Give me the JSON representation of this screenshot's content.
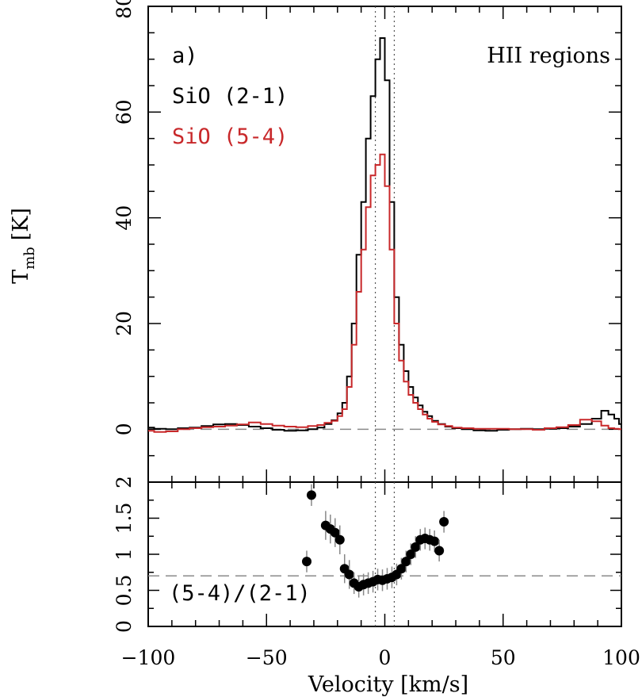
{
  "chart_data": [
    {
      "type": "line",
      "panel": "upper",
      "title": "HII regions",
      "panel_label": "a)",
      "xlabel": "",
      "ylabel_main": "T",
      "ylabel_sub": "mb",
      "ylabel_unit": "[K]",
      "xlim": [
        -100,
        100
      ],
      "ylim": [
        -10,
        80
      ],
      "yticks": [
        "0",
        "20",
        "40",
        "60",
        "80"
      ],
      "baseline": 0,
      "markers_x": [
        -4,
        4
      ],
      "colors": {
        "series1": "#000000",
        "series2": "#c8282a",
        "guide": "#8a8a8a"
      },
      "series": [
        {
          "name": "SiO (2-1)",
          "x": [
            -100,
            -95,
            -90,
            -85,
            -80,
            -75,
            -70,
            -65,
            -60,
            -55,
            -50,
            -45,
            -40,
            -35,
            -30,
            -27,
            -24,
            -21,
            -19,
            -17,
            -15,
            -13,
            -11,
            -9,
            -7,
            -5,
            -3,
            -1,
            1,
            3,
            5,
            7,
            9,
            11,
            13,
            15,
            17,
            19,
            21,
            24,
            27,
            30,
            35,
            40,
            45,
            50,
            55,
            60,
            65,
            70,
            75,
            80,
            85,
            90,
            93,
            96,
            98,
            100
          ],
          "y": [
            0.3,
            0.1,
            0,
            0.2,
            0.3,
            0.6,
            0.9,
            1,
            0.8,
            0.5,
            0.2,
            -0.1,
            -0.3,
            -0.2,
            0,
            0.3,
            1,
            1.7,
            3,
            5,
            10,
            20,
            33,
            43,
            55,
            63,
            70,
            74,
            66,
            43,
            25,
            16,
            11,
            8,
            6,
            4.5,
            3.3,
            2.5,
            1.6,
            1,
            0.5,
            0.2,
            0,
            -0.2,
            -0.3,
            -0.1,
            0,
            0.1,
            0,
            0.1,
            0.2,
            0.5,
            1,
            2,
            3.5,
            2.8,
            2,
            1
          ]
        },
        {
          "name": "SiO (5-4)",
          "x": [
            -100,
            -95,
            -90,
            -85,
            -80,
            -75,
            -70,
            -65,
            -60,
            -55,
            -50,
            -45,
            -40,
            -35,
            -30,
            -27,
            -24,
            -21,
            -19,
            -17,
            -15,
            -13,
            -11,
            -9,
            -7,
            -5,
            -3,
            -1,
            1,
            3,
            5,
            7,
            9,
            11,
            13,
            15,
            17,
            19,
            21,
            24,
            27,
            30,
            35,
            40,
            45,
            50,
            55,
            60,
            65,
            70,
            75,
            80,
            85,
            90,
            93,
            96,
            98,
            100
          ],
          "y": [
            -0.3,
            -0.5,
            -0.4,
            0,
            0.2,
            0.4,
            0.5,
            0.7,
            0.9,
            1.3,
            1,
            0.7,
            0.5,
            0.4,
            0.6,
            0.8,
            1.2,
            1.6,
            2.5,
            3.8,
            8,
            16,
            26,
            34,
            42,
            48,
            50,
            52,
            46,
            34,
            20,
            13,
            9,
            6.5,
            5,
            3.8,
            2.8,
            2,
            1.4,
            0.9,
            0.6,
            0.3,
            0.2,
            0.1,
            0.1,
            0.1,
            0,
            0,
            -0.1,
            0.2,
            0.4,
            0.8,
            1.8,
            1.5,
            0.7,
            0.2,
            0.1,
            0
          ]
        }
      ],
      "legend": [
        "SiO (2-1)",
        "SiO (5-4)"
      ]
    },
    {
      "type": "scatter",
      "panel": "lower",
      "xlabel": "Velocity [km/s]",
      "ylabel": "",
      "annotation": "(5-4)/(2-1)",
      "xlim": [
        -100,
        100
      ],
      "ylim": [
        0,
        2
      ],
      "yticks": [
        "0",
        "0.5",
        "1",
        "1.5",
        "2"
      ],
      "xticks": [
        "−100",
        "−50",
        "0",
        "50",
        "100"
      ],
      "reference_line": 0.7,
      "markers_x": [
        -4,
        4
      ],
      "series": [
        {
          "name": "ratio",
          "x": [
            -33,
            -31,
            -25,
            -23,
            -21,
            -19,
            -17,
            -15,
            -13,
            -11,
            -9,
            -7,
            -5,
            -3,
            -1,
            1,
            3,
            5,
            7,
            9,
            11,
            13,
            15,
            17,
            19,
            21,
            23,
            25
          ],
          "y": [
            0.9,
            1.82,
            1.4,
            1.35,
            1.3,
            1.2,
            0.8,
            0.72,
            0.6,
            0.55,
            0.58,
            0.6,
            0.62,
            0.65,
            0.64,
            0.66,
            0.68,
            0.72,
            0.8,
            0.9,
            1.0,
            1.1,
            1.2,
            1.22,
            1.2,
            1.18,
            1.05,
            1.45
          ],
          "err": [
            0.15,
            0.15,
            0.2,
            0.2,
            0.2,
            0.2,
            0.2,
            0.2,
            0.15,
            0.15,
            0.15,
            0.15,
            0.15,
            0.15,
            0.15,
            0.15,
            0.15,
            0.15,
            0.15,
            0.15,
            0.15,
            0.15,
            0.15,
            0.15,
            0.15,
            0.15,
            0.15,
            0.15
          ]
        }
      ]
    }
  ]
}
